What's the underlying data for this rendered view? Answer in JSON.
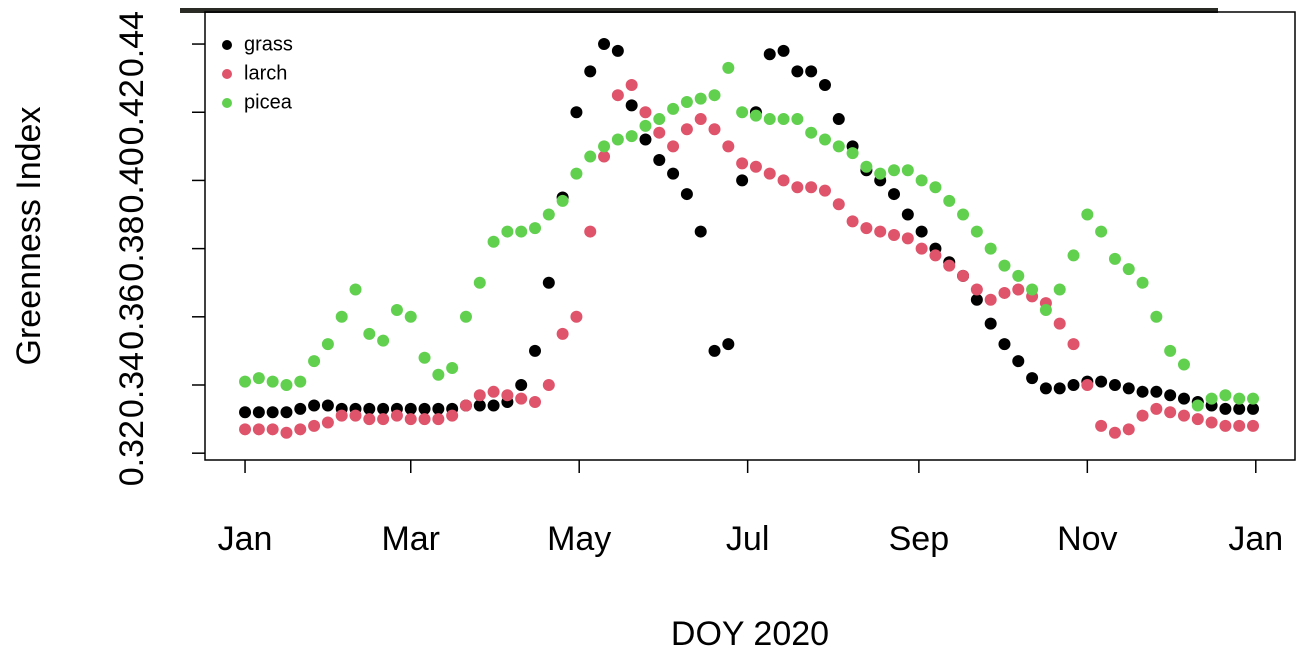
{
  "chart_data": {
    "type": "scatter",
    "x_label": "DOY 2020",
    "y_label": "Greenness Index",
    "x": [
      1,
      6,
      11,
      16,
      21,
      26,
      31,
      36,
      41,
      46,
      51,
      56,
      61,
      66,
      71,
      76,
      81,
      86,
      91,
      96,
      101,
      106,
      111,
      116,
      121,
      126,
      131,
      136,
      141,
      146,
      151,
      156,
      161,
      166,
      171,
      176,
      181,
      186,
      191,
      196,
      201,
      206,
      211,
      216,
      221,
      226,
      231,
      236,
      241,
      246,
      251,
      256,
      261,
      266,
      271,
      276,
      281,
      286,
      291,
      296,
      301,
      306,
      311,
      316,
      321,
      326,
      331,
      336,
      341,
      346,
      351,
      356,
      361,
      366
    ],
    "series": [
      {
        "name": "grass",
        "color": "#000000",
        "values": [
          0.332,
          0.332,
          0.332,
          0.332,
          0.333,
          0.334,
          0.334,
          0.333,
          0.333,
          0.333,
          0.333,
          0.333,
          0.333,
          0.333,
          0.333,
          0.333,
          0.334,
          0.334,
          0.334,
          0.335,
          0.34,
          0.35,
          0.37,
          0.395,
          0.42,
          0.432,
          0.44,
          0.438,
          0.422,
          0.412,
          0.406,
          0.402,
          0.396,
          0.385,
          0.35,
          0.352,
          0.4,
          0.42,
          0.437,
          0.438,
          0.432,
          0.432,
          0.428,
          0.418,
          0.41,
          0.403,
          0.4,
          0.396,
          0.39,
          0.385,
          0.38,
          0.376,
          0.372,
          0.365,
          0.358,
          0.352,
          0.347,
          0.342,
          0.339,
          0.339,
          0.34,
          0.341,
          0.341,
          0.34,
          0.339,
          0.338,
          0.338,
          0.337,
          0.336,
          0.335,
          0.334,
          0.333,
          0.333,
          0.333
        ]
      },
      {
        "name": "larch",
        "color": "#df536b",
        "values": [
          0.327,
          0.327,
          0.327,
          0.326,
          0.327,
          0.328,
          0.329,
          0.331,
          0.331,
          0.33,
          0.33,
          0.331,
          0.33,
          0.33,
          0.33,
          0.331,
          0.334,
          0.337,
          0.338,
          0.337,
          0.336,
          0.335,
          0.34,
          0.355,
          0.36,
          0.385,
          0.407,
          0.425,
          0.428,
          0.42,
          0.414,
          0.41,
          0.415,
          0.418,
          0.415,
          0.41,
          0.405,
          0.404,
          0.402,
          0.4,
          0.398,
          0.398,
          0.397,
          0.393,
          0.388,
          0.386,
          0.385,
          0.384,
          0.383,
          0.38,
          0.378,
          0.375,
          0.372,
          0.368,
          0.365,
          0.367,
          0.368,
          0.366,
          0.364,
          0.358,
          0.352,
          0.34,
          0.328,
          0.326,
          0.327,
          0.331,
          0.333,
          0.332,
          0.331,
          0.33,
          0.329,
          0.328,
          0.328,
          0.328
        ]
      },
      {
        "name": "picea",
        "color": "#61d04f",
        "values": [
          0.341,
          0.342,
          0.341,
          0.34,
          0.341,
          0.347,
          0.352,
          0.36,
          0.368,
          0.355,
          0.353,
          0.362,
          0.36,
          0.348,
          0.343,
          0.345,
          0.36,
          0.37,
          0.382,
          0.385,
          0.385,
          0.386,
          0.39,
          0.394,
          0.402,
          0.407,
          0.41,
          0.412,
          0.413,
          0.416,
          0.418,
          0.421,
          0.423,
          0.424,
          0.425,
          0.433,
          0.42,
          0.419,
          0.418,
          0.418,
          0.418,
          0.414,
          0.412,
          0.41,
          0.408,
          0.404,
          0.402,
          0.403,
          0.403,
          0.4,
          0.398,
          0.394,
          0.39,
          0.385,
          0.38,
          0.375,
          0.372,
          0.368,
          0.362,
          0.368,
          0.378,
          0.39,
          0.385,
          0.377,
          0.374,
          0.37,
          0.36,
          0.35,
          0.346,
          0.334,
          0.336,
          0.337,
          0.336,
          0.336
        ]
      }
    ],
    "xlim": [
      -13.5,
      381.2
    ],
    "xticks": [
      {
        "value": 1,
        "label": "Jan"
      },
      {
        "value": 61,
        "label": "Mar"
      },
      {
        "value": 122,
        "label": "May"
      },
      {
        "value": 183,
        "label": "Jul"
      },
      {
        "value": 245,
        "label": "Sep"
      },
      {
        "value": 306,
        "label": "Nov"
      },
      {
        "value": 367,
        "label": "Jan"
      }
    ],
    "ylim": [
      0.318,
      0.4494
    ],
    "yticks": [
      0.32,
      0.34,
      0.36,
      0.38,
      {
        "value": 0.4,
        "label": "0.40"
      },
      0.42,
      0.44
    ],
    "legend": "top-left"
  }
}
